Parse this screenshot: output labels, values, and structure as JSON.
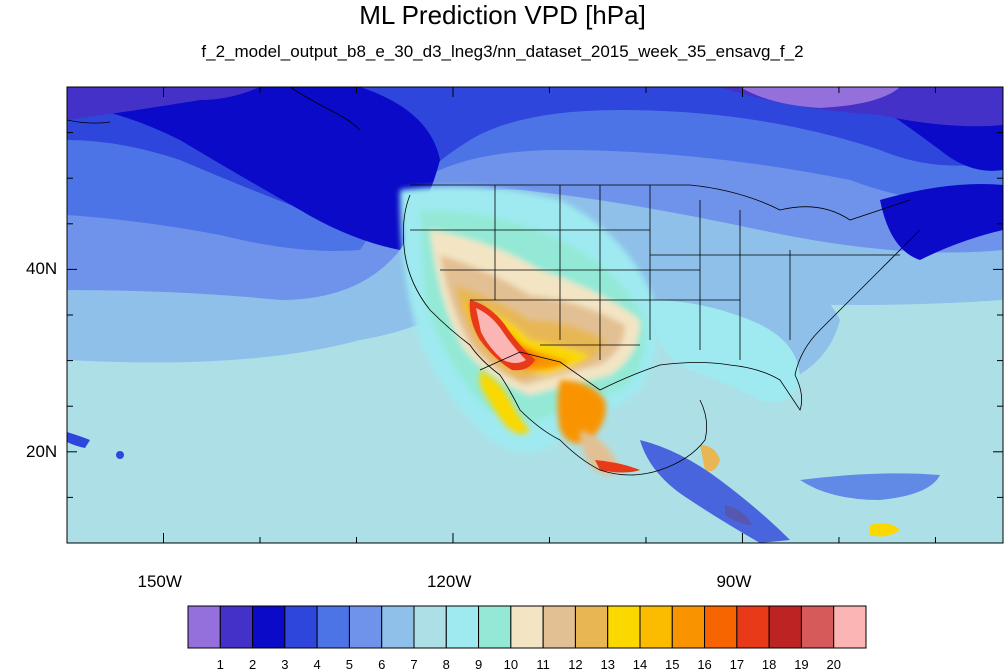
{
  "title": "ML Prediction VPD [hPa]",
  "subtitle": "f_2_model_output_b8_e_30_d3_lneg3/nn_dataset_2015_week_35_ensavg_f_2",
  "map": {
    "lon_ticks": [
      {
        "lon": -150,
        "label": "150W"
      },
      {
        "lon": -120,
        "label": "120W"
      },
      {
        "lon": -90,
        "label": "90W"
      }
    ],
    "lat_ticks": [
      {
        "lat": 40,
        "label": "40N"
      },
      {
        "lat": 20,
        "label": "20N"
      }
    ],
    "lon_range": [
      -160,
      -63
    ],
    "lat_range": [
      10,
      60
    ],
    "variable": "VPD",
    "units": "hPa"
  },
  "colorbar": {
    "labels": [
      "1",
      "2",
      "3",
      "4",
      "5",
      "6",
      "7",
      "8",
      "9",
      "10",
      "11",
      "12",
      "13",
      "14",
      "15",
      "16",
      "17",
      "18",
      "19",
      "20"
    ],
    "colors": [
      "#9370db",
      "#4432c8",
      "#0a0ac8",
      "#2e46dc",
      "#4d74e6",
      "#6f93ea",
      "#8ec0ea",
      "#ade0e6",
      "#9eeaf0",
      "#93e9d6",
      "#f3e5c4",
      "#e3c093",
      "#e8b754",
      "#fad800",
      "#fbbc00",
      "#f99400",
      "#f76500",
      "#e83a18",
      "#bc2424",
      "#d65a5a",
      "#fcb5b5"
    ]
  }
}
